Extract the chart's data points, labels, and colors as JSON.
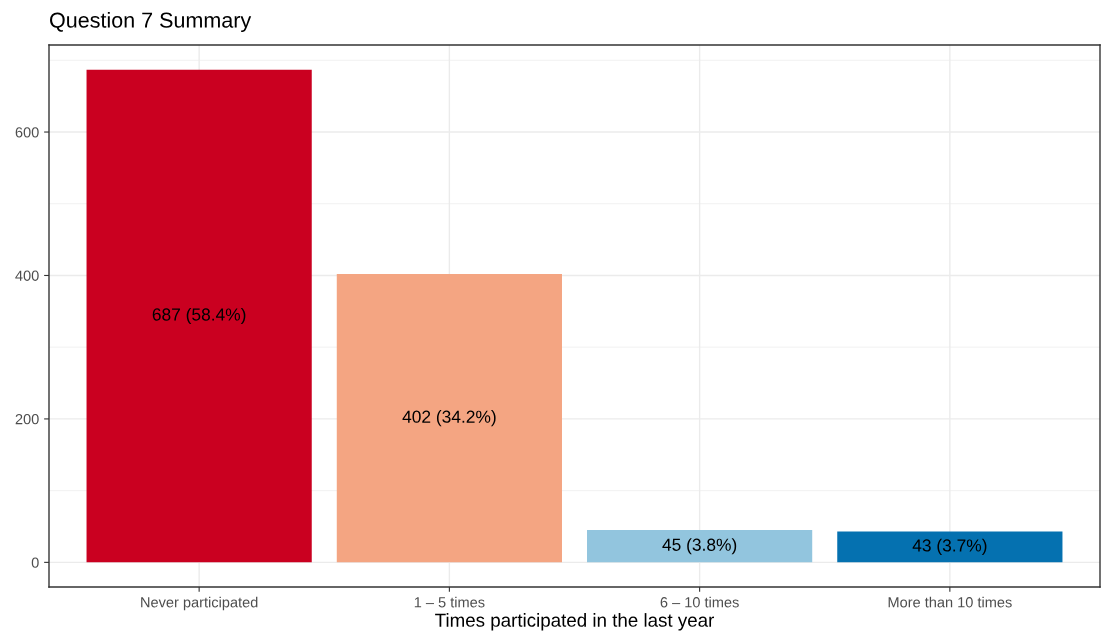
{
  "chart_data": {
    "type": "bar",
    "title": "Question 7 Summary",
    "xlabel": "Times participated in the last year",
    "categories": [
      "Never participated",
      "1 – 5 times",
      "6 – 10 times",
      "More than 10 times"
    ],
    "values": [
      687,
      402,
      45,
      43
    ],
    "colors": [
      "#ca0020",
      "#f4a582",
      "#92c5de",
      "#0571b0"
    ],
    "value_labels": [
      "687 (58.4%)",
      "402 (34.2%)",
      "45 (3.8%)",
      "43 (3.7%)"
    ],
    "ylim": [
      -34.35,
      721.35
    ],
    "yticks": [
      0,
      {
        "value": 100,
        "label": null
      },
      200,
      {
        "value": 300,
        "label": null
      },
      400,
      {
        "value": 500,
        "label": null
      },
      600,
      {
        "value": 700,
        "label": null
      }
    ],
    "grid": true
  }
}
